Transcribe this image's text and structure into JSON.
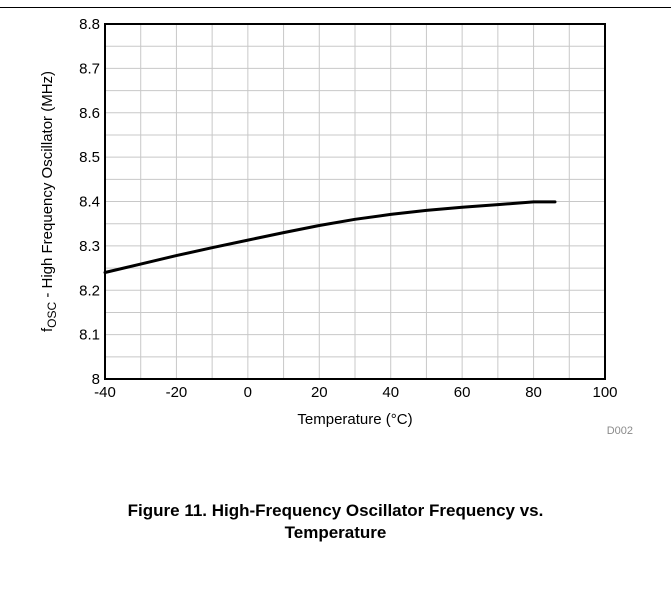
{
  "chart_data": {
    "type": "line",
    "xlabel": "Temperature (°C)",
    "ylabel_main": "f",
    "ylabel_sub": "OSC",
    "ylabel_rest": " - High Frequency Oscillator (MHz)",
    "xlim": [
      -40,
      100
    ],
    "ylim": [
      8,
      8.8
    ],
    "x_ticks": [
      "-40",
      "-20",
      "0",
      "20",
      "40",
      "60",
      "80",
      "100"
    ],
    "y_ticks": [
      "8",
      "8.1",
      "8.2",
      "8.3",
      "8.4",
      "8.5",
      "8.6",
      "8.7",
      "8.8"
    ],
    "grid": true,
    "series": [
      {
        "x": [
          -40,
          -30,
          -20,
          -10,
          0,
          10,
          20,
          30,
          40,
          50,
          60,
          70,
          80,
          86
        ],
        "y": [
          8.24,
          8.259,
          8.278,
          8.296,
          8.313,
          8.33,
          8.346,
          8.36,
          8.371,
          8.38,
          8.387,
          8.393,
          8.399,
          8.399
        ]
      }
    ],
    "code": "D002"
  },
  "caption": {
    "line1": "Figure 11. High-Frequency Oscillator Frequency vs.",
    "line2": "Temperature"
  },
  "colors": {
    "line": "#000000",
    "grid": "#c8c8c8",
    "frame": "#000000"
  }
}
